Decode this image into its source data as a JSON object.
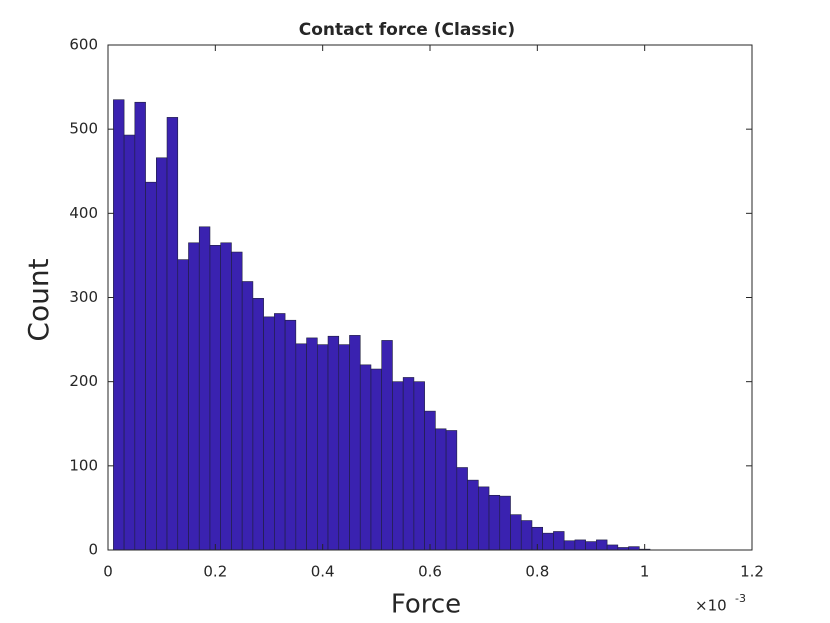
{
  "chart_data": {
    "type": "histogram",
    "title": "Contact force (Classic)",
    "xlabel": "Force",
    "ylabel": "Count",
    "x_multiplier": "×10",
    "x_multiplier_power": "-3",
    "color": "#3a22b0",
    "edgecolor": "#1e1e3c",
    "bins": [
      0.01,
      0.03,
      0.05,
      0.07,
      0.09,
      0.11,
      0.13,
      0.15,
      0.17,
      0.19,
      0.21,
      0.23,
      0.25,
      0.27,
      0.29,
      0.31,
      0.33,
      0.35,
      0.37,
      0.39,
      0.41,
      0.43,
      0.45,
      0.47,
      0.49,
      0.51,
      0.53,
      0.55,
      0.57,
      0.59,
      0.61,
      0.63,
      0.65,
      0.67,
      0.69,
      0.71,
      0.73,
      0.75,
      0.77,
      0.79,
      0.81,
      0.83,
      0.85,
      0.87,
      0.89,
      0.91,
      0.93,
      0.95,
      0.97,
      0.99,
      1.01
    ],
    "values": [
      535,
      493,
      532,
      437,
      466,
      514,
      345,
      365,
      384,
      362,
      365,
      354,
      319,
      299,
      277,
      281,
      273,
      245,
      252,
      244,
      254,
      244,
      255,
      220,
      215,
      249,
      200,
      205,
      200,
      165,
      144,
      142,
      98,
      83,
      75,
      65,
      64,
      42,
      35,
      27,
      20,
      22,
      11,
      12,
      10,
      12,
      6,
      3,
      4,
      1
    ],
    "xlim": [
      0,
      1.2
    ],
    "xticks": [
      0,
      0.2,
      0.4,
      0.6,
      0.8,
      1,
      1.2
    ],
    "ylim": [
      0,
      600
    ],
    "yticks": [
      0,
      100,
      200,
      300,
      400,
      500,
      600
    ]
  }
}
